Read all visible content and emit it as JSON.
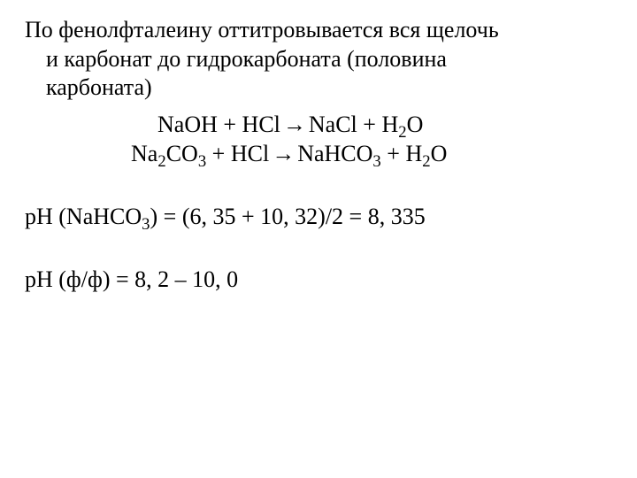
{
  "text": {
    "line1": "По фенолфталеину оттитровывается вся щелочь",
    "line2": "и карбонат до гидрокарбоната (половина",
    "line3": "карбоната)"
  },
  "equations": {
    "eq1": {
      "lhs1": "NaOH",
      "plus1": " + ",
      "lhs2": "HCl",
      "arrow": " → ",
      "rhs1": "NaCl",
      "plus2": " + ",
      "rhs2_a": "H",
      "rhs2_sub": "2",
      "rhs2_b": "O"
    },
    "eq2": {
      "lhs1_a": "Na",
      "lhs1_sub1": "2",
      "lhs1_b": "CO",
      "lhs1_sub2": "3",
      "plus1": " + ",
      "lhs2": "HCl",
      "arrow": " → ",
      "rhs1_a": "NaHCO",
      "rhs1_sub": "3",
      "plus2": " + ",
      "rhs2_a": "H",
      "rhs2_sub": "2",
      "rhs2_b": "O"
    }
  },
  "ph1": {
    "prefix": "pH (NaHCO",
    "sub": "3",
    "rest": ") = (6, 35 + 10, 32)/2 = 8, 335"
  },
  "ph2": {
    "full": "pH (ф/ф) = 8, 2 – 10, 0"
  },
  "style": {
    "font_family": "Times New Roman",
    "font_size_pt": 26,
    "text_color": "#000000",
    "background_color": "#ffffff"
  }
}
